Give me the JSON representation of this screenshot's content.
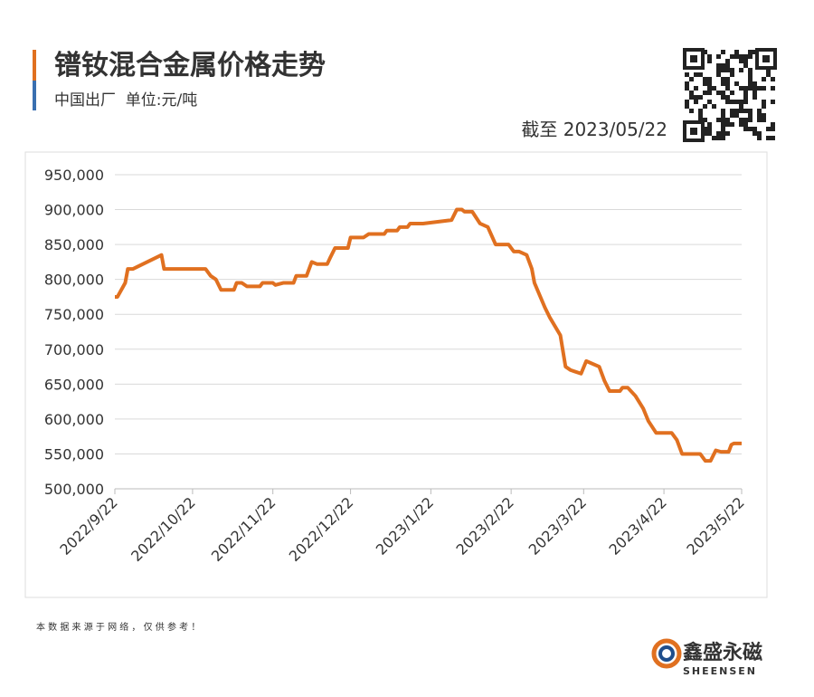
{
  "header": {
    "title": "镨钕混合金属价格走势",
    "subtitle": "中国出厂  单位:元/吨",
    "as_of": "截至 2023/05/22"
  },
  "chart_data": {
    "type": "line",
    "x": [
      "2022/9/22",
      "2022/9/23",
      "2022/9/26",
      "2022/9/27",
      "2022/9/29",
      "2022/10/10",
      "2022/10/11",
      "2022/10/27",
      "2022/10/29",
      "2022/10/31",
      "2022/11/2",
      "2022/11/7",
      "2022/11/8",
      "2022/11/10",
      "2022/11/12",
      "2022/11/17",
      "2022/11/18",
      "2022/11/22",
      "2022/11/23",
      "2022/11/26",
      "2022/11/30",
      "2022/12/1",
      "2022/12/5",
      "2022/12/7",
      "2022/12/9",
      "2022/12/13",
      "2022/12/14",
      "2022/12/16",
      "2022/12/21",
      "2022/12/22",
      "2022/12/27",
      "2022/12/29",
      "2023/1/4",
      "2023/1/5",
      "2023/1/9",
      "2023/1/10",
      "2023/1/13",
      "2023/1/14",
      "2023/1/19",
      "2023/1/30",
      "2023/2/1",
      "2023/2/3",
      "2023/2/4",
      "2023/2/7",
      "2023/2/10",
      "2023/2/13",
      "2023/2/16",
      "2023/2/21",
      "2023/2/23",
      "2023/2/25",
      "2023/2/28",
      "2023/3/2",
      "2023/3/3",
      "2023/3/7",
      "2023/3/9",
      "2023/3/13",
      "2023/3/15",
      "2023/3/17",
      "2023/3/21",
      "2023/3/23",
      "2023/3/28",
      "2023/3/30",
      "2023/4/1",
      "2023/4/5",
      "2023/4/6",
      "2023/4/8",
      "2023/4/11",
      "2023/4/14",
      "2023/4/16",
      "2023/4/19",
      "2023/4/25",
      "2023/4/27",
      "2023/4/29",
      "2023/5/6",
      "2023/5/8",
      "2023/5/10",
      "2023/5/12",
      "2023/5/14",
      "2023/5/17",
      "2023/5/18",
      "2023/5/19",
      "2023/5/22"
    ],
    "series": [
      {
        "color": "#e07020",
        "values": [
          775000,
          775000,
          795000,
          815000,
          815000,
          835000,
          815000,
          815000,
          805000,
          800000,
          785000,
          785000,
          795000,
          795000,
          790000,
          790000,
          795000,
          795000,
          792000,
          795000,
          795000,
          805000,
          805000,
          825000,
          822000,
          822000,
          830000,
          845000,
          845000,
          860000,
          860000,
          865000,
          865000,
          870000,
          870000,
          875000,
          875000,
          880000,
          880000,
          885000,
          900000,
          900000,
          897000,
          897000,
          880000,
          875000,
          850000,
          850000,
          840000,
          840000,
          835000,
          815000,
          795000,
          760000,
          745000,
          720000,
          675000,
          670000,
          665000,
          683000,
          675000,
          655000,
          640000,
          640000,
          645000,
          645000,
          633000,
          615000,
          597000,
          580000,
          580000,
          570000,
          550000,
          550000,
          540000,
          540000,
          555000,
          553000,
          553000,
          563000,
          565000,
          565000
        ]
      }
    ],
    "xlim": [
      "2022/9/22",
      "2023/5/22"
    ],
    "xticks": [
      "2022/9/22",
      "2022/10/22",
      "2022/11/22",
      "2022/12/22",
      "2023/1/22",
      "2023/2/22",
      "2023/3/22",
      "2023/4/22",
      "2023/5/22"
    ],
    "ylim": [
      500000,
      950000
    ],
    "yticks": [
      {
        "value": 500000,
        "label": "500,000"
      },
      {
        "value": 550000,
        "label": "550,000"
      },
      {
        "value": 600000,
        "label": "600,000"
      },
      {
        "value": 650000,
        "label": "650,000"
      },
      {
        "value": 700000,
        "label": "700,000"
      },
      {
        "value": 750000,
        "label": "750,000"
      },
      {
        "value": 800000,
        "label": "800,000"
      },
      {
        "value": 850000,
        "label": "850,000"
      },
      {
        "value": 900000,
        "label": "900,000"
      },
      {
        "value": 950000,
        "label": "950,000"
      }
    ],
    "grid": true
  },
  "footer": {
    "note": "本 数 据 来 源 于 网 络 ， 仅 供 参 考 ！",
    "brand": "鑫盛永磁",
    "brand_en": "SHEENSEN"
  }
}
